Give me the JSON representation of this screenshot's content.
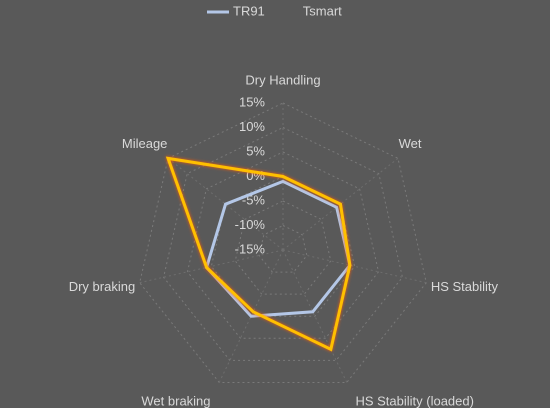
{
  "chart_data": {
    "type": "radar",
    "categories": [
      "Dry Handling",
      "Wet",
      "HS Stability",
      "HS Stability (loaded)",
      "Wet braking",
      "Dry braking",
      "Mileage"
    ],
    "series": [
      {
        "name": "TR91",
        "color": "#b4c7e7",
        "values": [
          -1,
          -1,
          -1,
          -1,
          0,
          1,
          0
        ]
      },
      {
        "name": "Tsmart",
        "color": "#ffc000",
        "values": [
          0,
          0,
          -1,
          7.5,
          -1,
          1,
          15
        ]
      }
    ],
    "ylim": [
      -15,
      15
    ],
    "yticks": [
      {
        "value": -15,
        "label": "-15%"
      },
      {
        "value": -10,
        "label": "-10%"
      },
      {
        "value": -5,
        "label": "-5%"
      },
      {
        "value": 0,
        "label": "0%"
      },
      {
        "value": 5,
        "label": "5%"
      },
      {
        "value": 10,
        "label": "10%"
      },
      {
        "value": 15,
        "label": "15%"
      }
    ],
    "grid": true,
    "legend": "top"
  }
}
